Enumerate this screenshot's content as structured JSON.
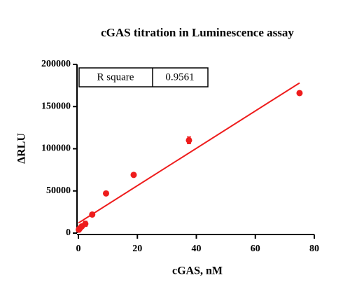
{
  "chart_data": {
    "type": "scatter",
    "title": "cGAS titration in Luminescence assay",
    "xlabel": "cGAS, nM",
    "ylabel": "ΔRLU",
    "xlim": [
      0,
      80
    ],
    "xticks": [
      0,
      20,
      40,
      60,
      80
    ],
    "ylim": [
      0,
      200000
    ],
    "yticks": [
      0,
      50000,
      100000,
      150000,
      200000
    ],
    "annotation_table": [
      "R square",
      "0.9561"
    ],
    "series": [
      {
        "name": "data",
        "color": "#ee1c1c",
        "x": [
          0.146,
          0.29,
          0.59,
          1.17,
          2.34,
          4.69,
          9.375,
          18.75,
          37.5,
          75
        ],
        "values": [
          4000,
          5000,
          6000,
          8000,
          11000,
          22000,
          47000,
          69000,
          110000,
          166000
        ],
        "errors": [
          1000,
          1000,
          1000,
          1500,
          3000,
          1000,
          1500,
          1500,
          4000,
          1500
        ]
      },
      {
        "name": "fit",
        "color": "#ee1c1c",
        "x": [
          0,
          75
        ],
        "values": [
          12000,
          178000
        ]
      }
    ]
  }
}
